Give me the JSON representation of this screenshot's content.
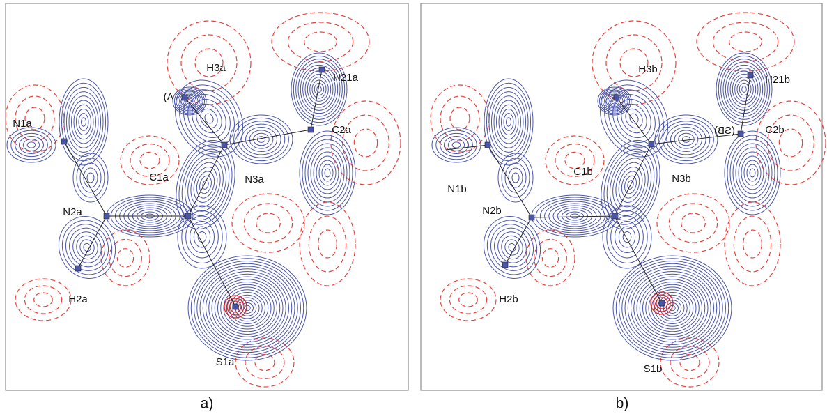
{
  "panels": [
    {
      "caption": "a)",
      "atoms": [
        {
          "label": "N1a"
        },
        {
          "label": "N2a"
        },
        {
          "label": "C1a"
        },
        {
          "label": "N3a"
        },
        {
          "label": "H3a"
        },
        {
          "label": "C2a"
        },
        {
          "label": "H21a"
        },
        {
          "label": "H2a"
        },
        {
          "label": "S1a"
        }
      ],
      "fragment": "(A"
    },
    {
      "caption": "b)",
      "atoms": [
        {
          "label": "N1b"
        },
        {
          "label": "N2b"
        },
        {
          "label": "C1b"
        },
        {
          "label": "N3b"
        },
        {
          "label": "H3b"
        },
        {
          "label": "C2b"
        },
        {
          "label": "H21b"
        },
        {
          "label": "H2b"
        },
        {
          "label": "S1b"
        }
      ],
      "fragment": "(SB)"
    }
  ]
}
